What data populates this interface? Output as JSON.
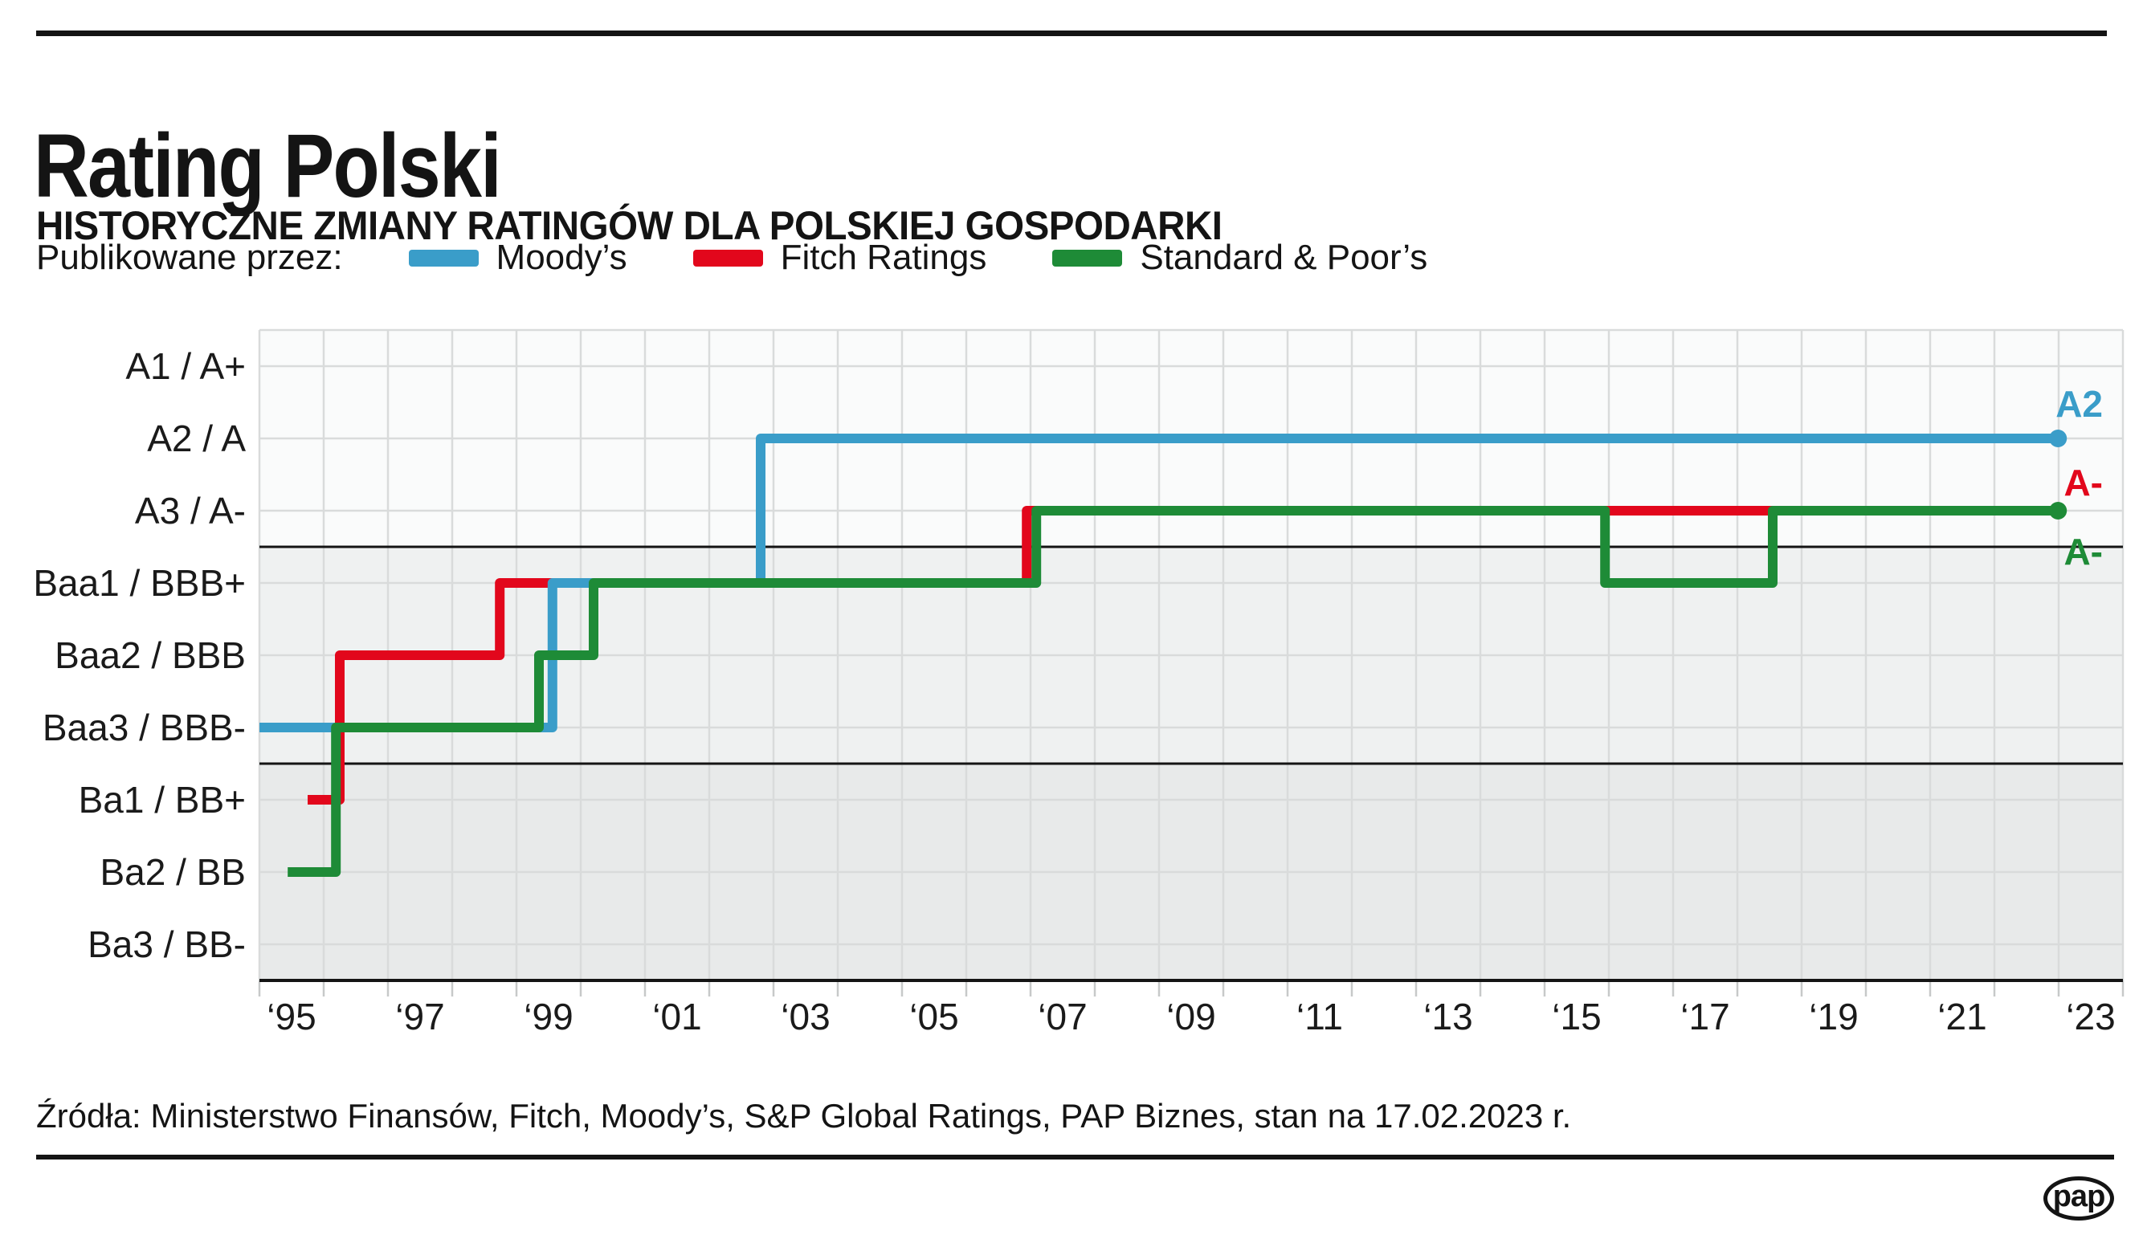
{
  "page": {
    "title": "Rating Polski",
    "subtitle": "HISTORYCZNE ZMIANY RATINGÓW DLA POLSKIEJ GOSPODARKI"
  },
  "legend": {
    "label": "Publikowane przez:",
    "items": [
      {
        "name": "Moody’s",
        "color": "#3a9dc9"
      },
      {
        "name": "Fitch Ratings",
        "color": "#e2071c"
      },
      {
        "name": "Standard & Poor’s",
        "color": "#1e8b37"
      }
    ]
  },
  "footer": {
    "sources": "Źródła: Ministerstwo Finansów, Fitch, Moody’s, S&P Global Ratings, PAP Biznes, stan na 17.02.2023 r.",
    "logo_text": "pap"
  },
  "chart_data": {
    "type": "line",
    "step_interpolation": true,
    "title": "Rating Polski",
    "subtitle": "HISTORYCZNE ZMIANY RATINGÓW DLA POLSKIEJ GOSPODARKI",
    "x_range": [
      1995,
      2024
    ],
    "grid": true,
    "rating_scale": [
      "A1",
      "A2",
      "A3",
      "Baa1",
      "Baa2",
      "Baa3",
      "Ba1",
      "Ba2",
      "Ba3"
    ],
    "y_axis_labels": [
      "A1 / A+",
      "A2 / A",
      "A3 / A-",
      "Baa1 / BBB+",
      "Baa2 / BBB",
      "Baa3 / BBB-",
      "Ba1 / BB+",
      "Ba2 / BB",
      "Ba3 / BB-"
    ],
    "separators_between": [
      [
        "A3",
        "Baa1"
      ],
      [
        "Baa3",
        "Ba1"
      ]
    ],
    "bands": [
      {
        "group": "a-ratings",
        "color": "#fafbfb"
      },
      {
        "group": "bbb-ratings",
        "color": "#eff1f1"
      },
      {
        "group": "bb-ratings",
        "color": "#e8eaea"
      }
    ],
    "grid_color": "#d9dbdb",
    "tick_color": "#c7c9c9",
    "axis_color": "#141414",
    "x_tick_labels": [
      {
        "year": 1995,
        "text": "‘95"
      },
      {
        "year": 1997,
        "text": "‘97"
      },
      {
        "year": 1999,
        "text": "‘99"
      },
      {
        "year": 2001,
        "text": "‘01"
      },
      {
        "year": 2003,
        "text": "‘03"
      },
      {
        "year": 2005,
        "text": "‘05"
      },
      {
        "year": 2007,
        "text": "‘07"
      },
      {
        "year": 2009,
        "text": "‘09"
      },
      {
        "year": 2011,
        "text": "‘11"
      },
      {
        "year": 2013,
        "text": "‘13"
      },
      {
        "year": 2015,
        "text": "‘15"
      },
      {
        "year": 2017,
        "text": "‘17"
      },
      {
        "year": 2019,
        "text": "‘19"
      },
      {
        "year": 2021,
        "text": "‘21"
      },
      {
        "year": 2023,
        "text": "‘23"
      }
    ],
    "series": [
      {
        "name": "Fitch Ratings",
        "color": "#e2071c",
        "end_year": 2022.99,
        "end_label": "A-",
        "end_dot": false,
        "steps": [
          {
            "year": 1995.75,
            "rating": "Ba1"
          },
          {
            "year": 1996.25,
            "rating": "Baa2"
          },
          {
            "year": 1998.74,
            "rating": "Baa1"
          },
          {
            "year": 2006.94,
            "rating": "A3"
          }
        ]
      },
      {
        "name": "Moody’s",
        "color": "#3a9dc9",
        "end_year": 2022.99,
        "end_label": "A2",
        "end_dot": true,
        "steps": [
          {
            "year": 1995.0,
            "rating": "Baa3"
          },
          {
            "year": 1999.56,
            "rating": "Baa1"
          },
          {
            "year": 2002.8,
            "rating": "A2"
          }
        ]
      },
      {
        "name": "Standard & Poor’s",
        "color": "#1e8b37",
        "end_year": 2022.99,
        "end_label": "A-",
        "end_dot": true,
        "steps": [
          {
            "year": 1995.44,
            "rating": "Ba2"
          },
          {
            "year": 1996.19,
            "rating": "Baa3"
          },
          {
            "year": 1999.35,
            "rating": "Baa2"
          },
          {
            "year": 2000.2,
            "rating": "Baa1"
          },
          {
            "year": 2007.09,
            "rating": "A3"
          },
          {
            "year": 2015.94,
            "rating": "Baa1"
          },
          {
            "year": 2018.55,
            "rating": "A3"
          }
        ]
      }
    ]
  }
}
